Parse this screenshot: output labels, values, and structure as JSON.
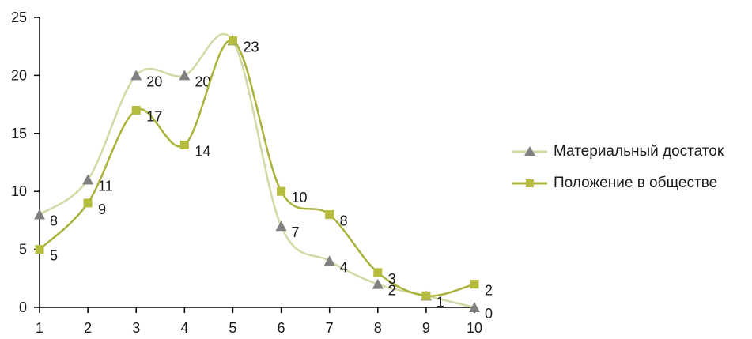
{
  "colors": {
    "series1_line": "#d3d9a6",
    "series1_marker": "#808080",
    "series2_line": "#a9b33a",
    "series2_marker": "#b4bb3d",
    "axis": "#000000"
  },
  "chart_data": {
    "type": "line",
    "x": [
      1,
      2,
      3,
      4,
      5,
      6,
      7,
      8,
      9,
      10
    ],
    "xlim": [
      1,
      10
    ],
    "ylim": [
      0,
      25
    ],
    "y_ticks": [
      0,
      5,
      10,
      15,
      20,
      25
    ],
    "x_ticks": [
      1,
      2,
      3,
      4,
      5,
      6,
      7,
      8,
      9,
      10
    ],
    "grid": false,
    "legend_position": "right",
    "series": [
      {
        "name": "Материальный достаток",
        "values": [
          8,
          11,
          20,
          20,
          23,
          7,
          4,
          2,
          1,
          0
        ],
        "marker": "triangle",
        "smooth": true
      },
      {
        "name": "Положение в обществе",
        "values": [
          5,
          9,
          17,
          14,
          23,
          10,
          8,
          3,
          1,
          2
        ],
        "marker": "square",
        "smooth": true
      }
    ]
  }
}
